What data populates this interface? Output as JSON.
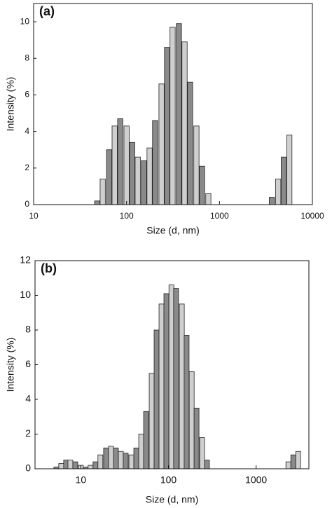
{
  "chart_data": [
    {
      "type": "bar",
      "title": "(a)",
      "x_label": "Size (d, nm)",
      "y_label": "Intensity (%)",
      "log_x": true,
      "colors": [
        "#8a8a8a",
        "#cfcfcf"
      ],
      "edge_color": "#222222",
      "x": [
        48.3,
        55.4,
        64.9,
        74.5,
        85.5,
        100,
        115,
        132,
        154,
        177,
        203,
        238,
        273,
        313,
        366,
        421,
        483,
        565,
        649,
        759,
        3665,
        4285,
        4920,
        5650
      ],
      "values": [
        0.2,
        1.4,
        3.0,
        4.3,
        4.7,
        4.3,
        3.4,
        2.6,
        2.4,
        3.1,
        4.6,
        6.6,
        8.6,
        9.7,
        9.9,
        8.9,
        6.7,
        4.3,
        2.1,
        0.6,
        0.4,
        1.4,
        2.6,
        3.8
      ],
      "xlim": [
        10,
        10000
      ],
      "xticks": [
        10,
        100,
        1000,
        10000
      ],
      "ylim": [
        0,
        11
      ],
      "yticks": [
        0,
        2,
        4,
        6,
        8,
        10
      ]
    },
    {
      "type": "bar",
      "title": "(b)",
      "x_label": "Size (d, nm)",
      "y_label": "Intensity (%)",
      "log_x": true,
      "colors": [
        "#8a8a8a",
        "#cfcfcf"
      ],
      "edge_color": "#222222",
      "x": [
        5.25,
        5.97,
        6.79,
        7.59,
        8.63,
        10,
        11.4,
        12.9,
        14.7,
        16.7,
        19.4,
        22.1,
        25.1,
        28.6,
        32.5,
        37.7,
        42.9,
        48.8,
        55.5,
        64.3,
        73.1,
        83.2,
        94.6,
        108,
        122,
        142,
        161,
        184,
        209,
        242,
        275,
        2333,
        2655,
        3020
      ],
      "values": [
        0.1,
        0.3,
        0.5,
        0.5,
        0.4,
        0.2,
        0.1,
        0.2,
        0.4,
        0.8,
        1.2,
        1.3,
        1.2,
        1.0,
        0.9,
        0.8,
        1.2,
        2.0,
        3.3,
        5.5,
        8.0,
        9.5,
        10.1,
        10.6,
        10.4,
        9.5,
        7.7,
        5.6,
        3.5,
        1.8,
        0.5,
        0.4,
        0.8,
        1.0
      ],
      "xlim": [
        3,
        4000
      ],
      "xticks": [
        10,
        100,
        1000
      ],
      "ylim": [
        0,
        12
      ],
      "yticks": [
        0,
        2,
        4,
        6,
        8,
        10,
        12
      ]
    }
  ]
}
